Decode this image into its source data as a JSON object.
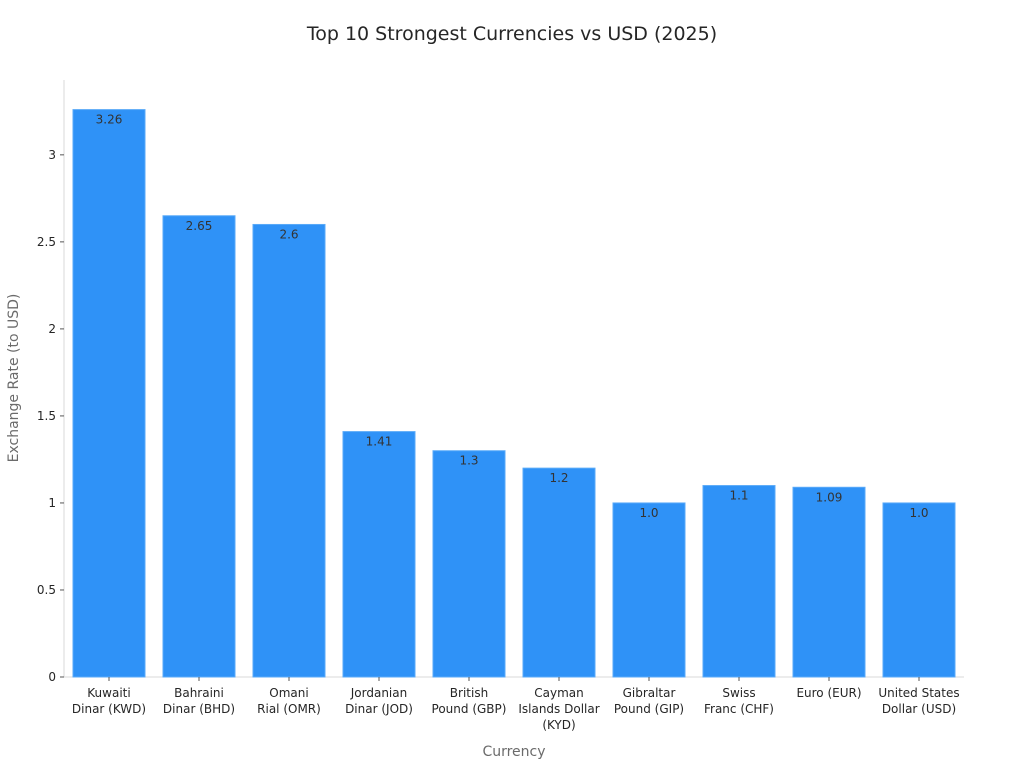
{
  "chart_data": {
    "type": "bar",
    "title": "Top 10 Strongest Currencies vs USD (2025)",
    "xlabel": "Currency",
    "ylabel": "Exchange Rate (to USD)",
    "categories": [
      [
        "Kuwaiti",
        "Dinar (KWD)"
      ],
      [
        "Bahraini",
        "Dinar (BHD)"
      ],
      [
        "Omani",
        "Rial (OMR)"
      ],
      [
        "Jordanian",
        "Dinar (JOD)"
      ],
      [
        "British",
        "Pound (GBP)"
      ],
      [
        "Cayman",
        "Islands Dollar",
        "(KYD)"
      ],
      [
        "Gibraltar",
        "Pound (GIP)"
      ],
      [
        "Swiss",
        "Franc (CHF)"
      ],
      [
        "Euro (EUR)"
      ],
      [
        "United States",
        "Dollar (USD)"
      ]
    ],
    "values": [
      3.26,
      2.65,
      2.6,
      1.41,
      1.3,
      1.2,
      1.0,
      1.1,
      1.09,
      1.0
    ],
    "data_labels": [
      "3.26",
      "2.65",
      "2.6",
      "1.41",
      "1.3",
      "1.2",
      "1.0",
      "1.1",
      "1.09",
      "1.0"
    ],
    "yticks": [
      0,
      0.5,
      1,
      1.5,
      2,
      2.5,
      3
    ],
    "ytick_labels": [
      "0",
      "0.5",
      "1",
      "1.5",
      "2",
      "2.5",
      "3"
    ],
    "ylim": [
      0,
      3.43
    ],
    "grid": false,
    "legend": "none",
    "bar_color": "#2f92f7",
    "bar_edge_color": "#5aaaf8",
    "axis_color": "#d9d9d9"
  }
}
